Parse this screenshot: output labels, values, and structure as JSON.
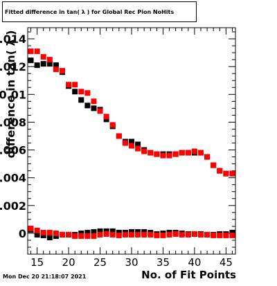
{
  "title": "Fitted difference in tan( λ ) for Global Rec Pion NoHits",
  "timestamp": "Mon Dec 20 21:18:07 2021",
  "chart_data": {
    "type": "scatter",
    "title": "Fitted difference in tan( λ ) for Global Rec Pion NoHits",
    "xlabel": "No. of Fit Points",
    "ylabel": "difference in tan( λ )",
    "xlim": [
      13.5,
      46.5
    ],
    "ylim": [
      -0.0015,
      0.0148
    ],
    "x_ticks": [
      15,
      20,
      25,
      30,
      35,
      40,
      45
    ],
    "x_tick_labels": [
      "15",
      "20",
      "25",
      "30",
      "35",
      "40",
      "45"
    ],
    "y_ticks": [
      0,
      0.002,
      0.004,
      0.006,
      0.008,
      0.01,
      0.012,
      0.014
    ],
    "y_tick_labels": [
      "0",
      "0.002",
      "0.004",
      "0.006",
      "0.008",
      "0.01",
      "0.012",
      "0.014"
    ],
    "x": [
      14,
      15,
      16,
      17,
      18,
      19,
      20,
      21,
      22,
      23,
      24,
      25,
      26,
      27,
      28,
      29,
      30,
      31,
      32,
      33,
      34,
      35,
      36,
      37,
      38,
      39,
      40,
      41,
      42,
      43,
      44,
      45,
      46
    ],
    "series": [
      {
        "color": "#000000",
        "values": [
          0.01245,
          0.0121,
          0.0122,
          0.0122,
          0.0121,
          0.0116,
          0.0106,
          0.0102,
          0.0096,
          0.0092,
          0.009,
          0.0089,
          0.0082,
          0.0077,
          0.007,
          0.0066,
          0.0066,
          0.0064,
          0.006,
          0.0058,
          0.0057,
          0.0057,
          0.0057,
          0.0057,
          0.0058,
          0.0058,
          0.0058,
          0.0058,
          0.0055,
          0.0049,
          0.0045,
          0.0043,
          0.0043
        ]
      },
      {
        "color": "#ff0000",
        "values": [
          0.0131,
          0.0131,
          0.0127,
          0.0125,
          0.0118,
          0.0117,
          0.0107,
          0.0107,
          0.0102,
          0.0101,
          0.0095,
          0.0088,
          0.0084,
          0.0078,
          0.007,
          0.0065,
          0.0063,
          0.0061,
          0.0059,
          0.0058,
          0.0057,
          0.0056,
          0.0056,
          0.0057,
          0.0058,
          0.0058,
          0.0059,
          0.0058,
          0.0055,
          0.0049,
          0.0045,
          0.0043,
          0.0043
        ]
      },
      {
        "color": "#000000",
        "values": [
          0.00025,
          -0.0001,
          -0.00015,
          -0.0003,
          -0.0002,
          -0.0001,
          -0.0001,
          -0.0001,
          0.0,
          5e-05,
          0.0001,
          0.00015,
          0.00015,
          0.00015,
          5e-05,
          5e-05,
          0.0001,
          0.0001,
          0.0001,
          5e-05,
          -5e-05,
          0.0,
          5e-05,
          5e-05,
          0.0,
          -5e-05,
          -5e-05,
          -5e-05,
          -0.0001,
          -0.0001,
          -5e-05,
          -5e-05,
          5e-05
        ]
      },
      {
        "color": "#ff0000",
        "values": [
          0.00035,
          0.0002,
          5e-05,
          5e-05,
          0.0,
          -0.0001,
          -0.0001,
          -0.0002,
          -0.0002,
          -0.0002,
          -0.0002,
          -0.0001,
          -5e-05,
          -0.0001,
          -0.00015,
          -0.0001,
          -0.0001,
          -0.0001,
          -0.0001,
          -0.0001,
          -0.00015,
          -0.00015,
          -0.0001,
          -5e-05,
          -0.0001,
          -0.0001,
          -5e-05,
          -0.0001,
          -0.0001,
          -0.00015,
          -0.00015,
          -0.00015,
          -0.00015
        ]
      }
    ],
    "grid": false,
    "legend": "none"
  }
}
